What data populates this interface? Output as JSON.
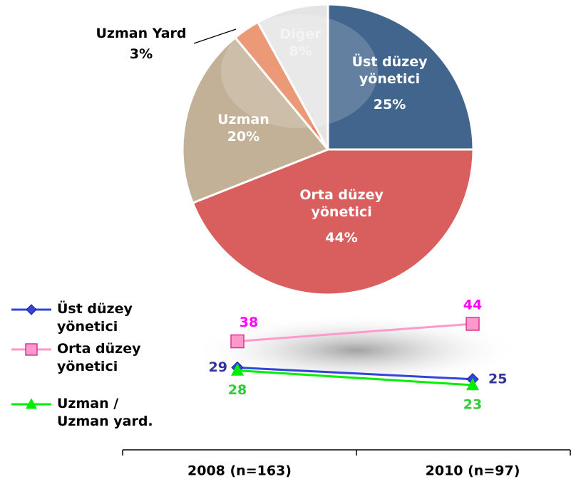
{
  "chart_data": [
    {
      "type": "pie",
      "categories": [
        "Üst düzey yönetici",
        "Orta düzey yönetici",
        "Uzman",
        "Uzman Yard",
        "Diğer"
      ],
      "values": [
        25,
        44,
        20,
        3,
        8
      ],
      "value_labels": [
        "25%",
        "44%",
        "20%",
        "3%",
        "8%"
      ],
      "colors": [
        "#42658d",
        "#d95e5e",
        "#c2b097",
        "#e8835a",
        "#e4e4e4"
      ]
    },
    {
      "type": "line",
      "categories": [
        "2008 (n=163)",
        "2010 (n=97)"
      ],
      "series": [
        {
          "name": "Üst düzey yönetici",
          "color": "#3344dd",
          "label_color": "#333399",
          "marker": "diamond",
          "values": [
            29,
            25
          ]
        },
        {
          "name": "Orta düzey yönetici",
          "color": "#ff99cc",
          "label_color": "#ff00ff",
          "marker": "square",
          "values": [
            38,
            44
          ]
        },
        {
          "name": "Uzman / Uzman yard.",
          "color": "#00ee00",
          "label_color": "#33cc33",
          "marker": "triangle",
          "values": [
            28,
            23
          ]
        }
      ]
    }
  ]
}
